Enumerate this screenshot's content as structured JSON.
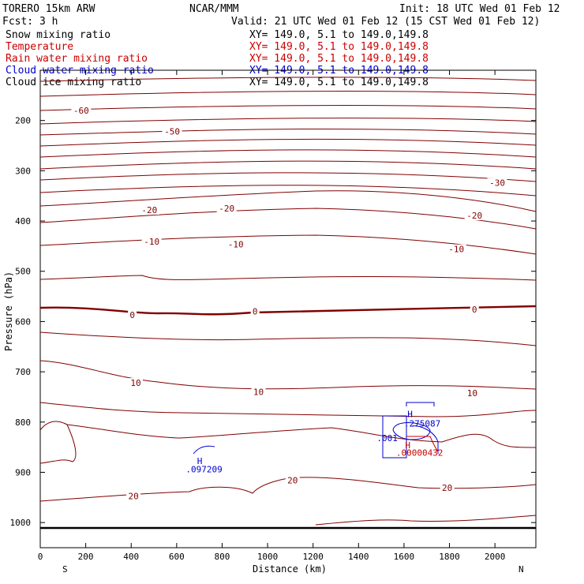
{
  "header": {
    "model": "TORERO  15km ARW",
    "center": "NCAR/MMM",
    "init": "Init: 18 UTC Wed 01 Feb 12",
    "fcst": "Fcst:    3 h",
    "valid": "Valid: 21 UTC Wed 01 Feb 12 (15 CST Wed 01 Feb 12)"
  },
  "legend": [
    {
      "label": "Snow mixing ratio",
      "coords": "XY= 149.0,  5.1 to 149.0,149.8",
      "color": "#000000"
    },
    {
      "label": "Temperature",
      "coords": "XY= 149.0,  5.1 to 149.0,149.8",
      "color": "#cc0000"
    },
    {
      "label": "Rain water mixing ratio",
      "coords": "XY= 149.0,  5.1 to 149.0,149.8",
      "color": "#cc0000"
    },
    {
      "label": "Cloud water mixing ratio",
      "coords": "XY= 149.0,  5.1 to 149.0,149.8",
      "color": "#0000cc"
    },
    {
      "label": "Cloud ice mixing ratio",
      "coords": "XY= 149.0,  5.1 to 149.0,149.8",
      "color": "#000000"
    }
  ],
  "chart_data": {
    "type": "contour",
    "xlabel": "Distance (km)",
    "ylabel": "Pressure (hPa)",
    "xlim": [
      0,
      2180
    ],
    "ylim": [
      1050,
      100
    ],
    "x_ticks": [
      "0",
      "200",
      "400",
      "600",
      "800",
      "1000",
      "1200",
      "1400",
      "1600",
      "1800",
      "2000"
    ],
    "y_ticks": [
      "200",
      "300",
      "400",
      "500",
      "600",
      "700",
      "800",
      "900",
      "1000"
    ],
    "x_end_labels": {
      "left": "S",
      "right": "N"
    },
    "contour_color": "#800000",
    "isotherm_labels": [
      {
        "text": "-60",
        "x": 180,
        "p": 180
      },
      {
        "text": "-50",
        "x": 580,
        "p": 222
      },
      {
        "text": "-30",
        "x": 2010,
        "p": 324
      },
      {
        "text": "-20",
        "x": 480,
        "p": 378
      },
      {
        "text": "-20",
        "x": 820,
        "p": 375
      },
      {
        "text": "-20",
        "x": 1910,
        "p": 389
      },
      {
        "text": "-10",
        "x": 490,
        "p": 441
      },
      {
        "text": "-10",
        "x": 860,
        "p": 446
      },
      {
        "text": "-10",
        "x": 1830,
        "p": 456
      },
      {
        "text": "0",
        "x": 405,
        "p": 587
      },
      {
        "text": "0",
        "x": 945,
        "p": 580
      },
      {
        "text": "0",
        "x": 1910,
        "p": 576
      },
      {
        "text": "10",
        "x": 420,
        "p": 722
      },
      {
        "text": "10",
        "x": 960,
        "p": 740
      },
      {
        "text": "10",
        "x": 1900,
        "p": 742
      },
      {
        "text": "20",
        "x": 410,
        "p": 947
      },
      {
        "text": "20",
        "x": 1110,
        "p": 916
      },
      {
        "text": "20",
        "x": 1790,
        "p": 931
      }
    ],
    "annotations": [
      {
        "text": "H",
        "x": 690,
        "p": 877,
        "color": "#0000cc"
      },
      {
        "text": ".097209",
        "x": 640,
        "p": 894,
        "color": "#0000cc"
      },
      {
        "text": "H",
        "x": 1615,
        "p": 784,
        "color": "#0000cc"
      },
      {
        "text": ".275087",
        "x": 1600,
        "p": 803,
        "color": "#0000cc"
      },
      {
        "text": ".001",
        "x": 1480,
        "p": 832,
        "color": "#0000cc"
      },
      {
        "text": "H",
        "x": 1605,
        "p": 846,
        "color": "#cc0000"
      },
      {
        "text": ".00000432",
        "x": 1565,
        "p": 861,
        "color": "#cc0000"
      }
    ]
  }
}
